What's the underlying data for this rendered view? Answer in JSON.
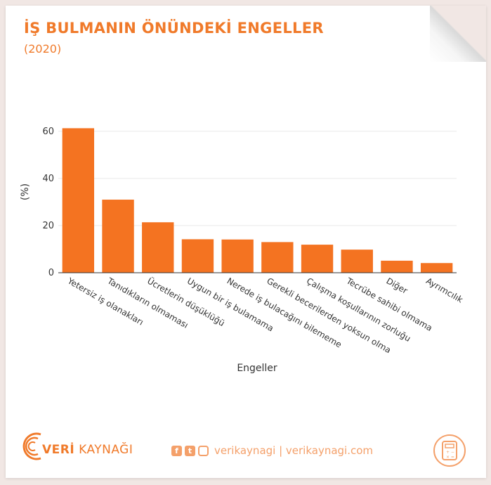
{
  "header": {
    "title": "İŞ BULMANIN ÖNÜNDEKİ ENGELLER",
    "subtitle": "(2020)"
  },
  "colors": {
    "accent": "#f07a2a",
    "bar": "#f47321",
    "footer_accent": "#f4a06a"
  },
  "chart_data": {
    "type": "bar",
    "title": "",
    "xlabel": "Engeller",
    "ylabel": "(%)",
    "ylim": [
      0,
      65
    ],
    "yticks": [
      0,
      20,
      40,
      60
    ],
    "grid": true,
    "categories": [
      "Yetersiz iş olanakları",
      "Tanıdıkların olmaması",
      "Ücretlerin düşüklüğü",
      "Uygun bir iş bulamama",
      "Nerede iş bulacağını bilememe",
      "Gerekli becerilerden yoksun olma",
      "Çalışma koşullarının zorluğu",
      "Tecrübe sahibi olmama",
      "Diğer",
      "Ayrımcılık"
    ],
    "values": [
      61.3,
      31,
      21.4,
      14.2,
      14.1,
      13,
      11.9,
      9.8,
      5.1,
      4.1
    ]
  },
  "footer": {
    "brand_light": "VERİ",
    "brand_rest": "KAYNAĞI",
    "social_text": "verikaynagi | verikaynagi.com",
    "icons": [
      "facebook-icon",
      "twitter-icon",
      "instagram-icon",
      "calculator-icon"
    ]
  }
}
